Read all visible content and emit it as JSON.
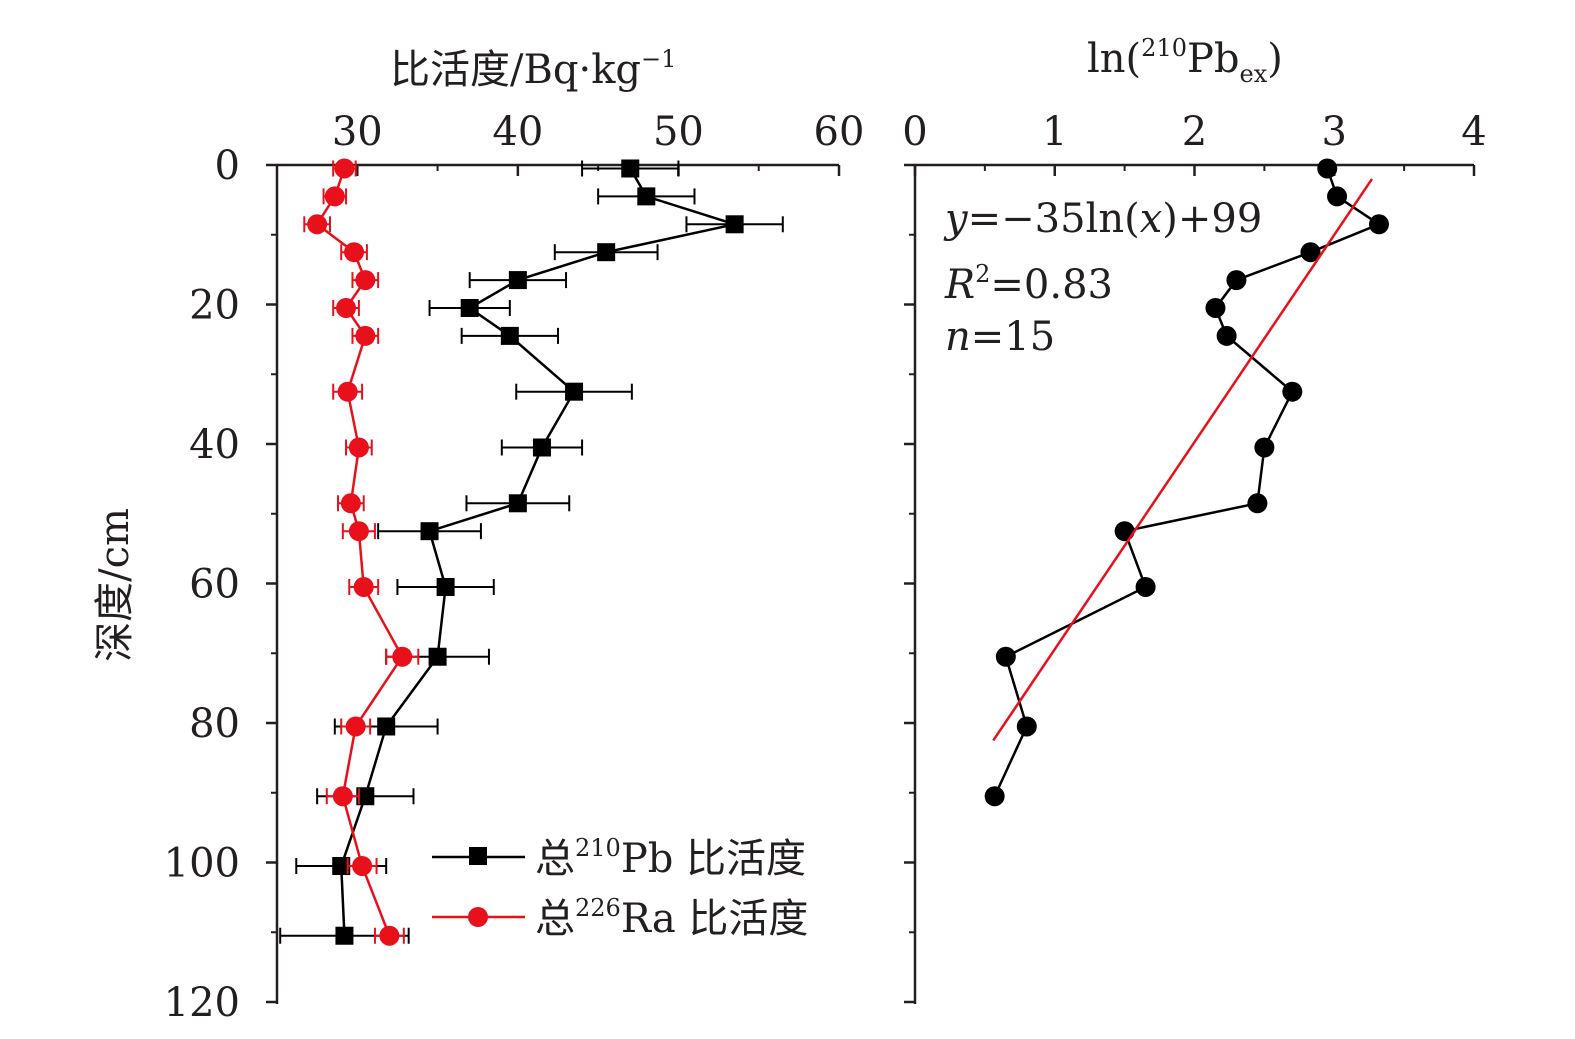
{
  "chart_data": [
    {
      "type": "line",
      "title": "",
      "xlabel": "比活度/Bq·kg⁻¹",
      "ylabel": "深度/cm",
      "xlim": [
        25,
        60
      ],
      "ylim": [
        120,
        0
      ],
      "xticks": [
        "30",
        "40",
        "50",
        "60"
      ],
      "yticks": [
        "0",
        "20",
        "40",
        "60",
        "80",
        "100",
        "120"
      ],
      "legend_position": "bottom-right",
      "series": [
        {
          "name": "总²¹⁰Pb 比活度",
          "color": "#000000",
          "marker": "square",
          "points": [
            {
              "depth": 0.5,
              "value": 47.0,
              "err": 3.0
            },
            {
              "depth": 4.5,
              "value": 48.0,
              "err": 3.0
            },
            {
              "depth": 8.5,
              "value": 53.5,
              "err": 3.0
            },
            {
              "depth": 12.5,
              "value": 45.5,
              "err": 3.2
            },
            {
              "depth": 16.5,
              "value": 40.0,
              "err": 3.0
            },
            {
              "depth": 20.5,
              "value": 37.0,
              "err": 2.5
            },
            {
              "depth": 24.5,
              "value": 39.5,
              "err": 3.0
            },
            {
              "depth": 32.5,
              "value": 43.5,
              "err": 3.6
            },
            {
              "depth": 40.5,
              "value": 41.5,
              "err": 2.5
            },
            {
              "depth": 48.5,
              "value": 40.0,
              "err": 3.2
            },
            {
              "depth": 52.5,
              "value": 34.5,
              "err": 3.2
            },
            {
              "depth": 60.5,
              "value": 35.5,
              "err": 3.0
            },
            {
              "depth": 70.5,
              "value": 35.0,
              "err": 3.2
            },
            {
              "depth": 80.5,
              "value": 31.8,
              "err": 3.2
            },
            {
              "depth": 90.5,
              "value": 30.5,
              "err": 3.0
            },
            {
              "depth": 100.5,
              "value": 29.0,
              "err": 2.8
            },
            {
              "depth": 110.5,
              "value": 29.2,
              "err": 4.0
            }
          ]
        },
        {
          "name": "总²²⁶Ra 比活度",
          "color": "#e8101b",
          "marker": "circle",
          "points": [
            {
              "depth": 0.5,
              "value": 29.2,
              "err": 0.7
            },
            {
              "depth": 4.5,
              "value": 28.6,
              "err": 0.7
            },
            {
              "depth": 8.5,
              "value": 27.5,
              "err": 0.8
            },
            {
              "depth": 12.5,
              "value": 29.8,
              "err": 0.8
            },
            {
              "depth": 16.5,
              "value": 30.5,
              "err": 0.8
            },
            {
              "depth": 20.5,
              "value": 29.3,
              "err": 0.8
            },
            {
              "depth": 24.5,
              "value": 30.5,
              "err": 0.8
            },
            {
              "depth": 32.5,
              "value": 29.4,
              "err": 0.9
            },
            {
              "depth": 40.5,
              "value": 30.1,
              "err": 0.8
            },
            {
              "depth": 48.5,
              "value": 29.6,
              "err": 0.8
            },
            {
              "depth": 52.5,
              "value": 30.1,
              "err": 1.0
            },
            {
              "depth": 60.5,
              "value": 30.4,
              "err": 0.9
            },
            {
              "depth": 70.5,
              "value": 32.8,
              "err": 1.0
            },
            {
              "depth": 80.5,
              "value": 29.9,
              "err": 0.9
            },
            {
              "depth": 90.5,
              "value": 29.1,
              "err": 1.0
            },
            {
              "depth": 100.5,
              "value": 30.3,
              "err": 0.9
            },
            {
              "depth": 110.5,
              "value": 32.0,
              "err": 0.9
            }
          ]
        }
      ]
    },
    {
      "type": "line",
      "title": "",
      "xlabel": "ln(²¹⁰Pbex)",
      "ylabel": "",
      "xlim": [
        0,
        4
      ],
      "ylim": [
        120,
        0
      ],
      "xticks": [
        "0",
        "1",
        "2",
        "3",
        "4"
      ],
      "series": [
        {
          "name": "",
          "color": "#000000",
          "marker": "circle",
          "points": [
            {
              "depth": 0.5,
              "value": 2.95
            },
            {
              "depth": 4.5,
              "value": 3.02
            },
            {
              "depth": 8.5,
              "value": 3.32
            },
            {
              "depth": 12.5,
              "value": 2.83
            },
            {
              "depth": 16.5,
              "value": 2.3
            },
            {
              "depth": 20.5,
              "value": 2.15
            },
            {
              "depth": 24.5,
              "value": 2.23
            },
            {
              "depth": 32.5,
              "value": 2.7
            },
            {
              "depth": 40.5,
              "value": 2.5
            },
            {
              "depth": 48.5,
              "value": 2.45
            },
            {
              "depth": 52.5,
              "value": 1.5
            },
            {
              "depth": 60.5,
              "value": 1.65
            },
            {
              "depth": 70.5,
              "value": 0.65
            },
            {
              "depth": 80.5,
              "value": 0.8
            },
            {
              "depth": 90.5,
              "value": 0.57
            }
          ]
        },
        {
          "name": "",
          "color": "#e8101b",
          "marker": "none",
          "fit": true,
          "points": [
            {
              "depth": 2.0,
              "value": 3.27
            },
            {
              "depth": 82.5,
              "value": 0.56
            }
          ]
        }
      ],
      "annotations": {
        "equation_y": "y",
        "equation_rest": "=−35ln(",
        "equation_x": "x",
        "equation_end": ")+99",
        "r2_r": "R",
        "r2_sup": "2",
        "r2_val": "=0.83",
        "n_n": "n",
        "n_val": "=15"
      }
    }
  ],
  "labels": {
    "left_title_main": "比活度/Bq·kg",
    "left_title_sup": "−1",
    "right_title_pre": "ln(",
    "right_title_sup": "210",
    "right_title_mid": "Pb",
    "right_title_sub": "ex",
    "right_title_end": ")",
    "y_title": "深度/cm",
    "legend_pb_pre": "总",
    "legend_pb_sup": "210",
    "legend_pb_rest": "Pb 比活度",
    "legend_ra_pre": "总",
    "legend_ra_sup": "226",
    "legend_ra_rest": "Ra 比活度"
  }
}
